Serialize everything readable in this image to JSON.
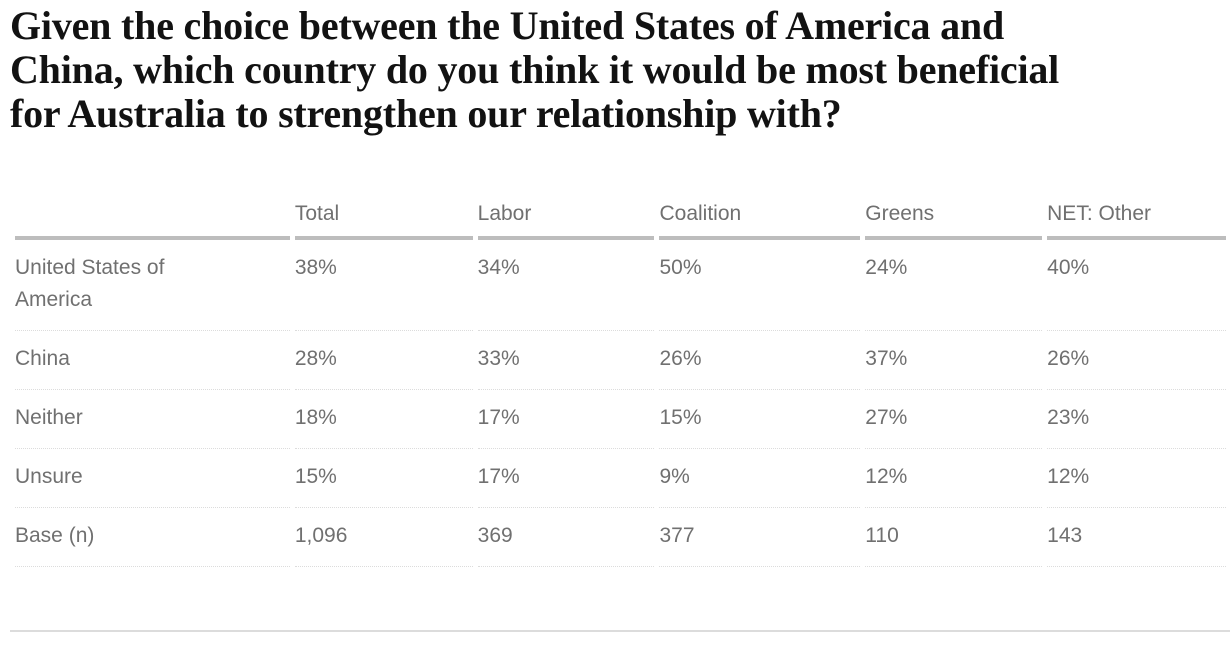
{
  "title_lines": [
    "Given the choice between the United States of America and",
    "China, which country do you think it would be most beneficial",
    "for Australia to strengthen our relationship with?"
  ],
  "table": {
    "headers": [
      "",
      "Total",
      "Labor",
      "Coalition",
      "Greens",
      "NET: Other"
    ],
    "rows": [
      [
        "United States of America",
        "38%",
        "34%",
        "50%",
        "24%",
        "40%"
      ],
      [
        "China",
        "28%",
        "33%",
        "26%",
        "37%",
        "26%"
      ],
      [
        "Neither",
        "18%",
        "17%",
        "15%",
        "27%",
        "23%"
      ],
      [
        "Unsure",
        "15%",
        "17%",
        "9%",
        "12%",
        "12%"
      ],
      [
        "Base (n)",
        "1,096",
        "369",
        "377",
        "110",
        "143"
      ]
    ]
  }
}
